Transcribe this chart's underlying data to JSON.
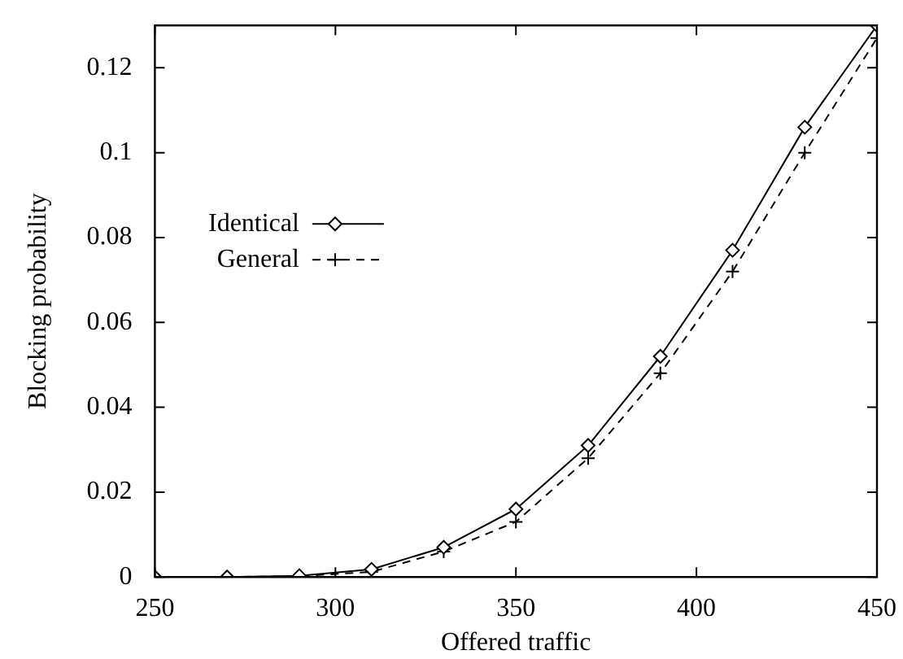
{
  "chart_data": {
    "type": "line",
    "xlabel": "Offered traffic",
    "ylabel": "Blocking probability",
    "xlim": [
      250,
      450
    ],
    "xticks": [
      250,
      300,
      350,
      400,
      450
    ],
    "ylim": [
      0,
      0.13
    ],
    "yticks": [
      0,
      0.02,
      0.04,
      0.06,
      0.08,
      0.1,
      0.12
    ],
    "grid": false,
    "legend": "left",
    "series": [
      {
        "name": "Identical",
        "color": "#000000",
        "marker": "diamond",
        "line_style": "solid",
        "x": [
          250,
          270,
          290,
          310,
          330,
          350,
          370,
          390,
          410,
          430,
          450
        ],
        "values": [
          0,
          0,
          0.0003,
          0.0018,
          0.007,
          0.016,
          0.031,
          0.052,
          0.077,
          0.106,
          0.13
        ]
      },
      {
        "name": "General",
        "color": "#000000",
        "marker": "cross",
        "line_style": "dashed",
        "x": [
          250,
          270,
          290,
          310,
          330,
          350,
          370,
          390,
          410,
          430,
          450
        ],
        "values": [
          0,
          0,
          0.0002,
          0.0012,
          0.006,
          0.013,
          0.028,
          0.048,
          0.072,
          0.1,
          0.127
        ]
      }
    ]
  }
}
